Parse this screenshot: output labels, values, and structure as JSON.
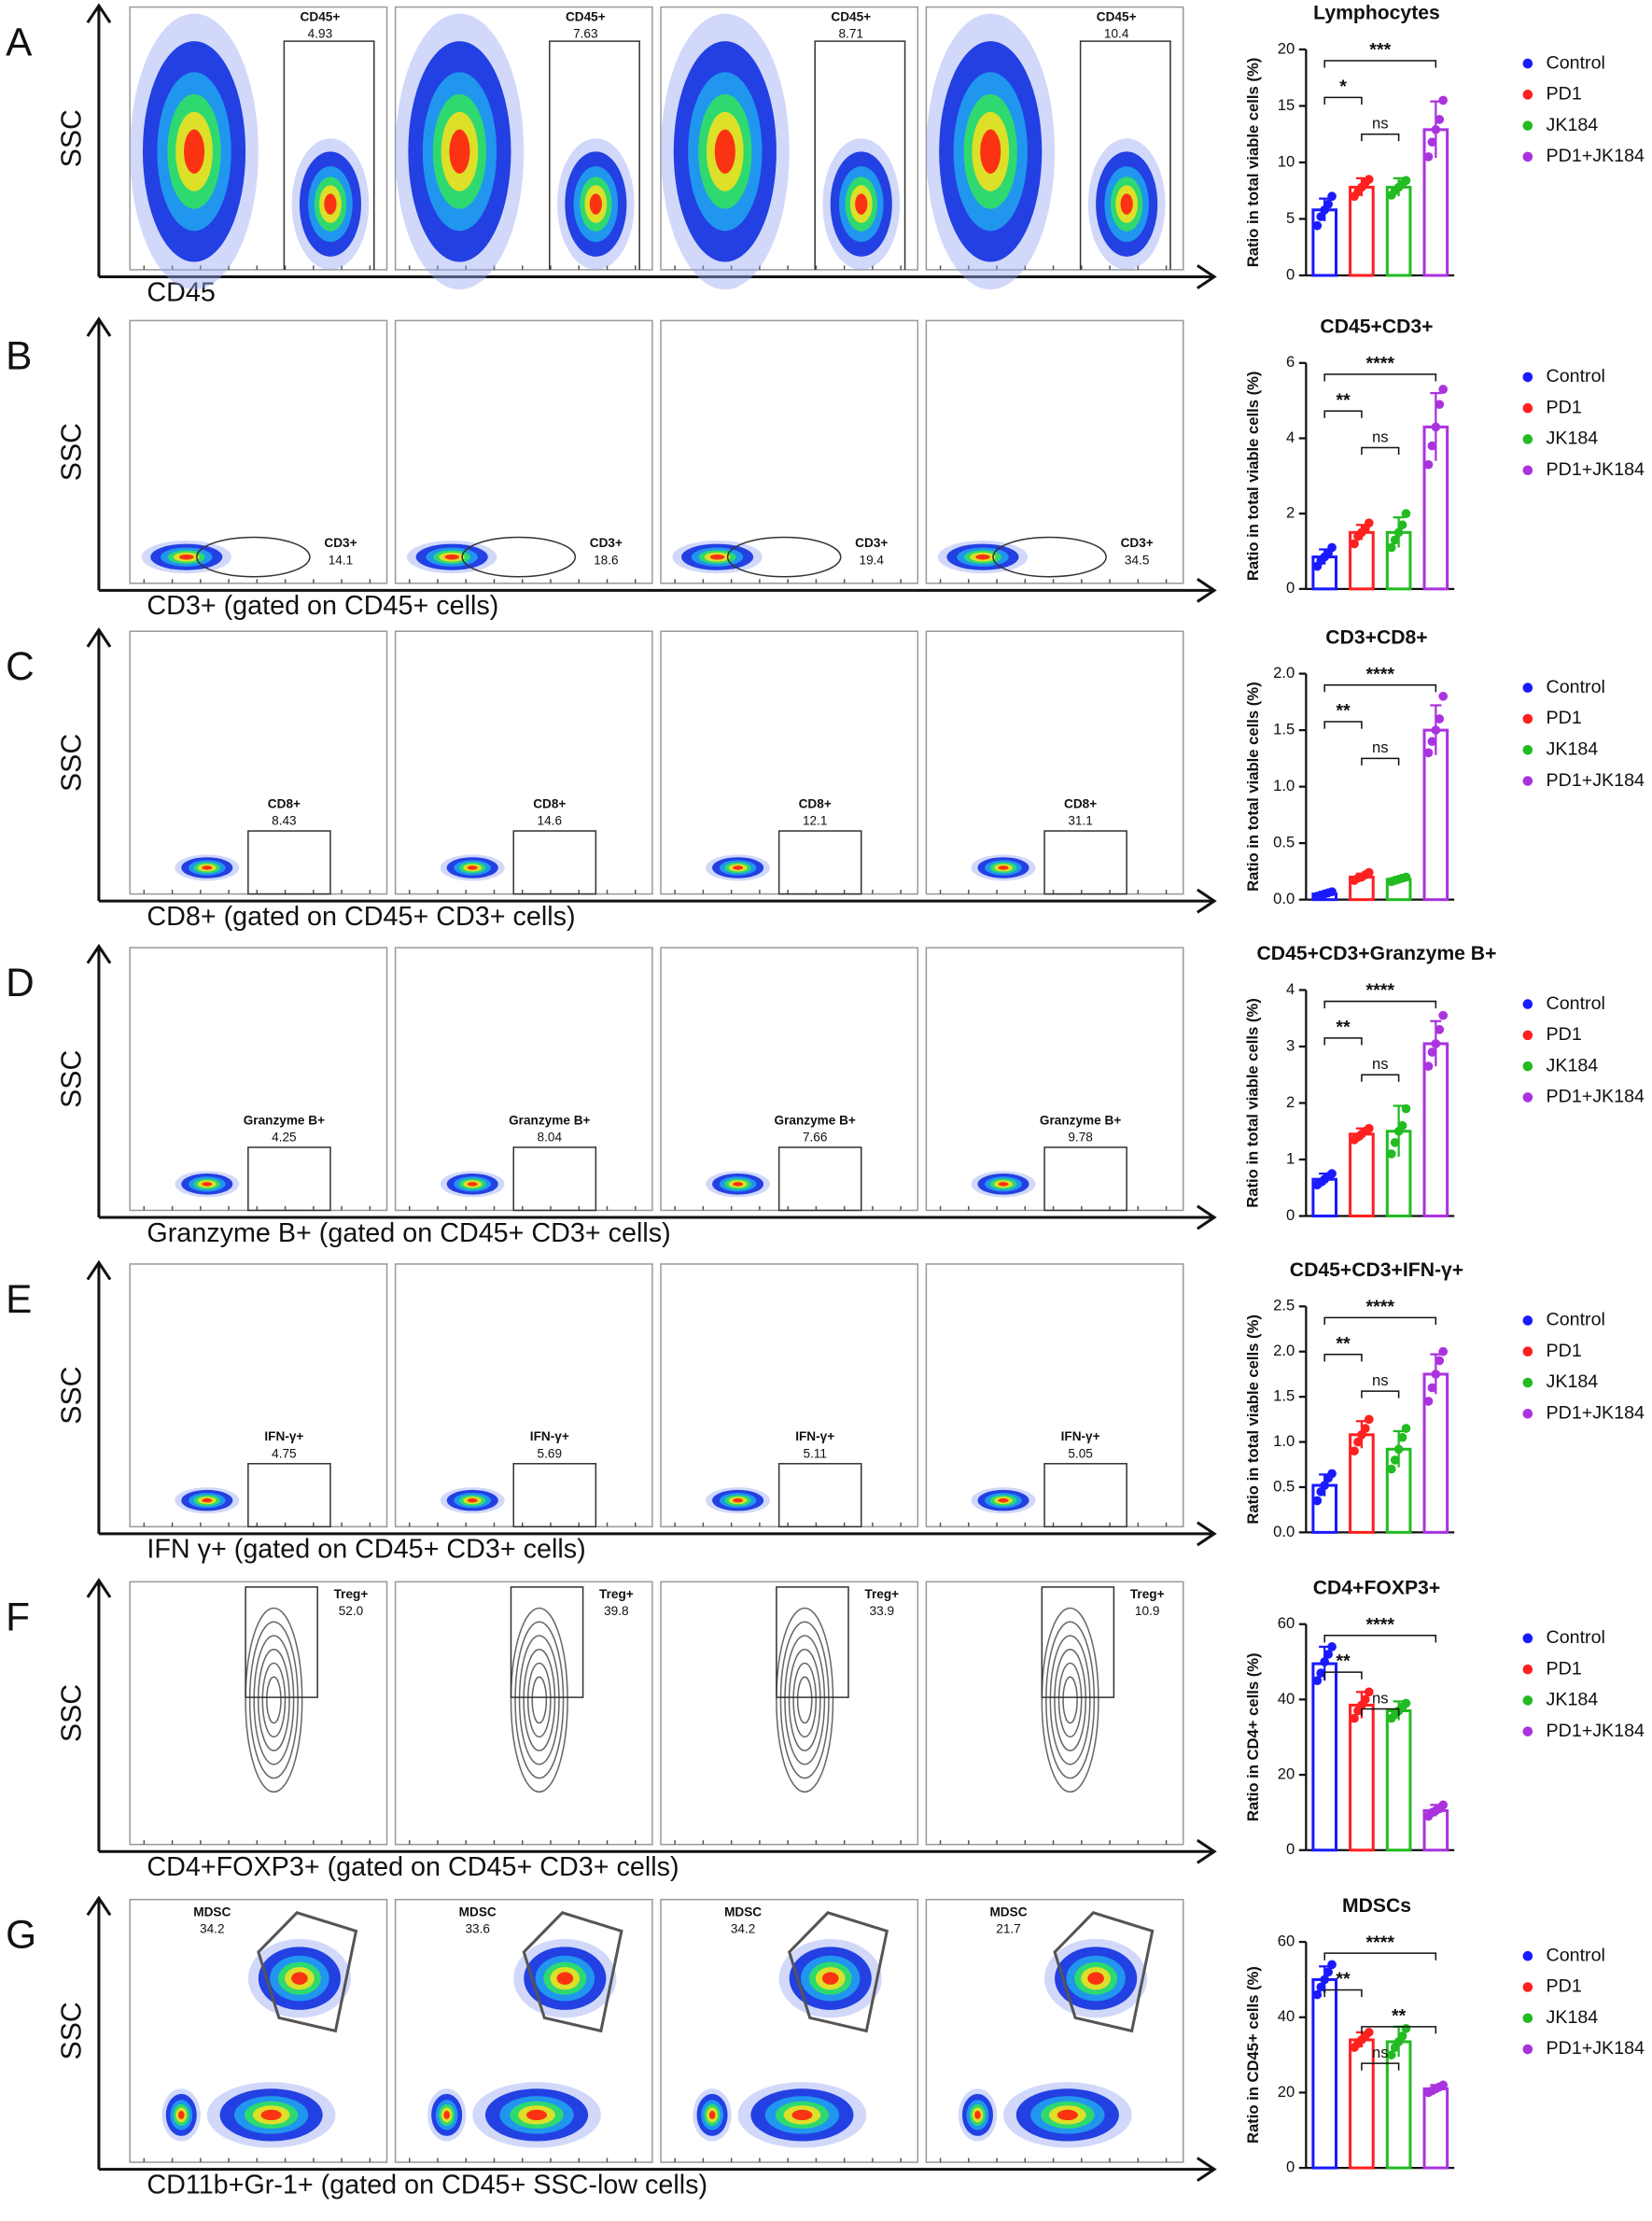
{
  "panels": [
    {
      "letter": "A",
      "y_label": "SSC",
      "x_label": "CD45",
      "gate": "CD45+",
      "gate_values": [
        "4.93",
        "7.63",
        "8.71",
        "10.4"
      ]
    },
    {
      "letter": "B",
      "y_label": "SSC",
      "x_label": "CD3+ (gated on CD45+ cells)",
      "gate": "CD3+",
      "gate_values": [
        "14.1",
        "18.6",
        "19.4",
        "34.5"
      ]
    },
    {
      "letter": "C",
      "y_label": "SSC",
      "x_label": "CD8+ (gated on CD45+ CD3+ cells)",
      "gate": "CD8+",
      "gate_values": [
        "8.43",
        "14.6",
        "12.1",
        "31.1"
      ]
    },
    {
      "letter": "D",
      "y_label": "SSC",
      "x_label": "Granzyme B+ (gated on CD45+ CD3+ cells)",
      "gate": "Granzyme B+",
      "gate_values": [
        "4.25",
        "8.04",
        "7.66",
        "9.78"
      ]
    },
    {
      "letter": "E",
      "y_label": "SSC",
      "x_label": "IFN γ+ (gated on CD45+ CD3+ cells)",
      "gate": "IFN-γ+",
      "gate_values": [
        "4.75",
        "5.69",
        "5.11",
        "5.05"
      ]
    },
    {
      "letter": "F",
      "y_label": "SSC",
      "x_label": "CD4+FOXP3+ (gated on CD45+ CD3+ cells)",
      "gate": "Treg+",
      "gate_values": [
        "52.0",
        "39.8",
        "33.9",
        "10.9"
      ]
    },
    {
      "letter": "G",
      "y_label": "SSC",
      "x_label": "CD11b+Gr-1+ (gated on CD45+ SSC-low cells)",
      "gate": "MDSC",
      "gate_values": [
        "34.2",
        "33.6",
        "34.2",
        "21.7"
      ]
    }
  ],
  "chart_data": [
    {
      "type": "bar",
      "title": "Lymphocytes",
      "ylabel": "Ratio in total viable cells (%)",
      "ylim": [
        0,
        20
      ],
      "yticks": [
        0,
        5,
        10,
        15,
        20
      ],
      "categories": [
        "Control",
        "PD1",
        "JK184",
        "PD1+JK184"
      ],
      "colors": [
        "#1a1aff",
        "#ff2020",
        "#22bb22",
        "#aa33dd"
      ],
      "values": [
        5.8,
        7.8,
        7.8,
        12.9
      ],
      "errors": [
        1.0,
        0.8,
        0.8,
        2.5
      ],
      "points": [
        [
          4.4,
          5.2,
          5.8,
          6.3,
          7.0
        ],
        [
          7.0,
          7.4,
          7.8,
          8.2,
          8.5
        ],
        [
          7.1,
          7.5,
          7.8,
          8.1,
          8.4
        ],
        [
          10.5,
          11.8,
          12.9,
          13.8,
          15.5
        ]
      ],
      "annotations": [
        {
          "label": "***",
          "between": [
            "Control",
            "PD1+JK184"
          ]
        },
        {
          "label": "*",
          "between": [
            "Control",
            "PD1"
          ]
        },
        {
          "label": "ns",
          "between": [
            "PD1",
            "JK184"
          ]
        }
      ]
    },
    {
      "type": "bar",
      "title": "CD45+CD3+",
      "ylabel": "Ratio in total viable cells (%)",
      "ylim": [
        0,
        6
      ],
      "yticks": [
        0,
        2,
        4,
        6
      ],
      "categories": [
        "Control",
        "PD1",
        "JK184",
        "PD1+JK184"
      ],
      "colors": [
        "#1a1aff",
        "#ff2020",
        "#22bb22",
        "#aa33dd"
      ],
      "values": [
        0.85,
        1.5,
        1.5,
        4.3
      ],
      "errors": [
        0.2,
        0.2,
        0.4,
        0.9
      ],
      "points": [
        [
          0.6,
          0.75,
          0.85,
          0.95,
          1.1
        ],
        [
          1.2,
          1.4,
          1.5,
          1.6,
          1.75
        ],
        [
          1.1,
          1.3,
          1.5,
          1.7,
          2.0
        ],
        [
          3.3,
          3.8,
          4.3,
          4.9,
          5.3
        ]
      ],
      "annotations": [
        {
          "label": "****",
          "between": [
            "Control",
            "PD1+JK184"
          ]
        },
        {
          "label": "**",
          "between": [
            "Control",
            "PD1"
          ]
        },
        {
          "label": "ns",
          "between": [
            "PD1",
            "JK184"
          ]
        }
      ]
    },
    {
      "type": "bar",
      "title": "CD3+CD8+",
      "ylabel": "Ratio in total viable cells (%)",
      "ylim": [
        0,
        2
      ],
      "yticks": [
        {
          "value": 0,
          "label": "0.0"
        },
        {
          "value": 0.5,
          "label": "0.5"
        },
        {
          "value": 1,
          "label": "1.0"
        },
        {
          "value": 1.5,
          "label": "1.5"
        },
        {
          "value": 2,
          "label": "2.0"
        }
      ],
      "categories": [
        "Control",
        "PD1",
        "JK184",
        "PD1+JK184"
      ],
      "colors": [
        "#1a1aff",
        "#ff2020",
        "#22bb22",
        "#aa33dd"
      ],
      "values": [
        0.05,
        0.2,
        0.18,
        1.5
      ],
      "errors": [
        0.02,
        0.03,
        0.02,
        0.22
      ],
      "points": [
        [
          0.03,
          0.04,
          0.05,
          0.06,
          0.07
        ],
        [
          0.17,
          0.19,
          0.2,
          0.22,
          0.24
        ],
        [
          0.16,
          0.17,
          0.18,
          0.19,
          0.2
        ],
        [
          1.3,
          1.4,
          1.5,
          1.6,
          1.8
        ]
      ],
      "annotations": [
        {
          "label": "****",
          "between": [
            "Control",
            "PD1+JK184"
          ]
        },
        {
          "label": "**",
          "between": [
            "Control",
            "PD1"
          ]
        },
        {
          "label": "ns",
          "between": [
            "PD1",
            "JK184"
          ]
        }
      ]
    },
    {
      "type": "bar",
      "title": "CD45+CD3+Granzyme B+",
      "ylabel": "Ratio in total viable cells (%)",
      "ylim": [
        0,
        4
      ],
      "yticks": [
        0,
        1,
        2,
        3,
        4
      ],
      "categories": [
        "Control",
        "PD1",
        "JK184",
        "PD1+JK184"
      ],
      "colors": [
        "#1a1aff",
        "#ff2020",
        "#22bb22",
        "#aa33dd"
      ],
      "values": [
        0.65,
        1.45,
        1.5,
        3.05
      ],
      "errors": [
        0.1,
        0.1,
        0.45,
        0.4
      ],
      "points": [
        [
          0.55,
          0.6,
          0.65,
          0.7,
          0.75
        ],
        [
          1.35,
          1.4,
          1.45,
          1.5,
          1.55
        ],
        [
          1.1,
          1.3,
          1.5,
          1.6,
          1.9
        ],
        [
          2.65,
          2.9,
          3.05,
          3.3,
          3.55
        ]
      ],
      "annotations": [
        {
          "label": "****",
          "between": [
            "Control",
            "PD1+JK184"
          ]
        },
        {
          "label": "**",
          "between": [
            "Control",
            "PD1"
          ]
        },
        {
          "label": "ns",
          "between": [
            "PD1",
            "JK184"
          ]
        }
      ]
    },
    {
      "type": "bar",
      "title": "CD45+CD3+IFN-γ+",
      "ylabel": "Ratio in total viable cells (%)",
      "ylim": [
        0,
        2.5
      ],
      "yticks": [
        {
          "value": 0,
          "label": "0.0"
        },
        {
          "value": 0.5,
          "label": "0.5"
        },
        {
          "value": 1,
          "label": "1.0"
        },
        {
          "value": 1.5,
          "label": "1.5"
        },
        {
          "value": 2,
          "label": "2.0"
        },
        {
          "value": 2.5,
          "label": "2.5"
        }
      ],
      "categories": [
        "Control",
        "PD1",
        "JK184",
        "PD1+JK184"
      ],
      "colors": [
        "#1a1aff",
        "#ff2020",
        "#22bb22",
        "#aa33dd"
      ],
      "values": [
        0.52,
        1.08,
        0.92,
        1.75
      ],
      "errors": [
        0.12,
        0.15,
        0.2,
        0.22
      ],
      "points": [
        [
          0.35,
          0.45,
          0.52,
          0.6,
          0.65
        ],
        [
          0.9,
          1.0,
          1.08,
          1.15,
          1.25
        ],
        [
          0.7,
          0.8,
          0.92,
          1.05,
          1.15
        ],
        [
          1.45,
          1.6,
          1.75,
          1.9,
          2.0
        ]
      ],
      "annotations": [
        {
          "label": "****",
          "between": [
            "Control",
            "PD1+JK184"
          ]
        },
        {
          "label": "**",
          "between": [
            "Control",
            "PD1"
          ]
        },
        {
          "label": "ns",
          "between": [
            "PD1",
            "JK184"
          ]
        }
      ]
    },
    {
      "type": "bar",
      "title": "CD4+FOXP3+",
      "ylabel": "Ratio in CD4+ cells (%)",
      "ylim": [
        0,
        60
      ],
      "yticks": [
        0,
        20,
        40,
        60
      ],
      "categories": [
        "Control",
        "PD1",
        "JK184",
        "PD1+JK184"
      ],
      "colors": [
        "#1a1aff",
        "#ff2020",
        "#22bb22",
        "#aa33dd"
      ],
      "values": [
        49.5,
        38.5,
        37,
        10.5
      ],
      "errors": [
        4.5,
        3.5,
        2.5,
        1.5
      ],
      "points": [
        [
          45,
          47,
          50,
          52,
          54
        ],
        [
          35,
          37,
          38.5,
          40,
          42
        ],
        [
          35,
          36,
          37,
          38,
          39
        ],
        [
          9,
          10,
          10.5,
          11,
          12
        ]
      ],
      "annotations": [
        {
          "label": "****",
          "between": [
            "Control",
            "PD1+JK184"
          ]
        },
        {
          "label": "**",
          "between": [
            "Control",
            "PD1"
          ]
        },
        {
          "label": "ns",
          "between": [
            "PD1",
            "JK184"
          ]
        }
      ]
    },
    {
      "type": "bar",
      "title": "MDSCs",
      "ylabel": "Ratio in CD45+ cells (%)",
      "ylim": [
        0,
        60
      ],
      "yticks": [
        0,
        20,
        40,
        60
      ],
      "categories": [
        "Control",
        "PD1",
        "JK184",
        "PD1+JK184"
      ],
      "colors": [
        "#1a1aff",
        "#ff2020",
        "#22bb22",
        "#aa33dd"
      ],
      "values": [
        50,
        34,
        33.5,
        21
      ],
      "errors": [
        3.5,
        2,
        4,
        1
      ],
      "points": [
        [
          46,
          48,
          50,
          52,
          54
        ],
        [
          32,
          33,
          34,
          35,
          36
        ],
        [
          30,
          32,
          33.5,
          35,
          37
        ],
        [
          20,
          20.5,
          21,
          21.5,
          22
        ]
      ],
      "annotations": [
        {
          "label": "****",
          "between": [
            "Control",
            "PD1+JK184"
          ]
        },
        {
          "label": "**",
          "between": [
            "Control",
            "PD1"
          ]
        },
        {
          "label": "**",
          "between": [
            "PD1",
            "PD1+JK184"
          ]
        },
        {
          "label": "ns",
          "between": [
            "PD1",
            "JK184"
          ]
        }
      ]
    }
  ]
}
